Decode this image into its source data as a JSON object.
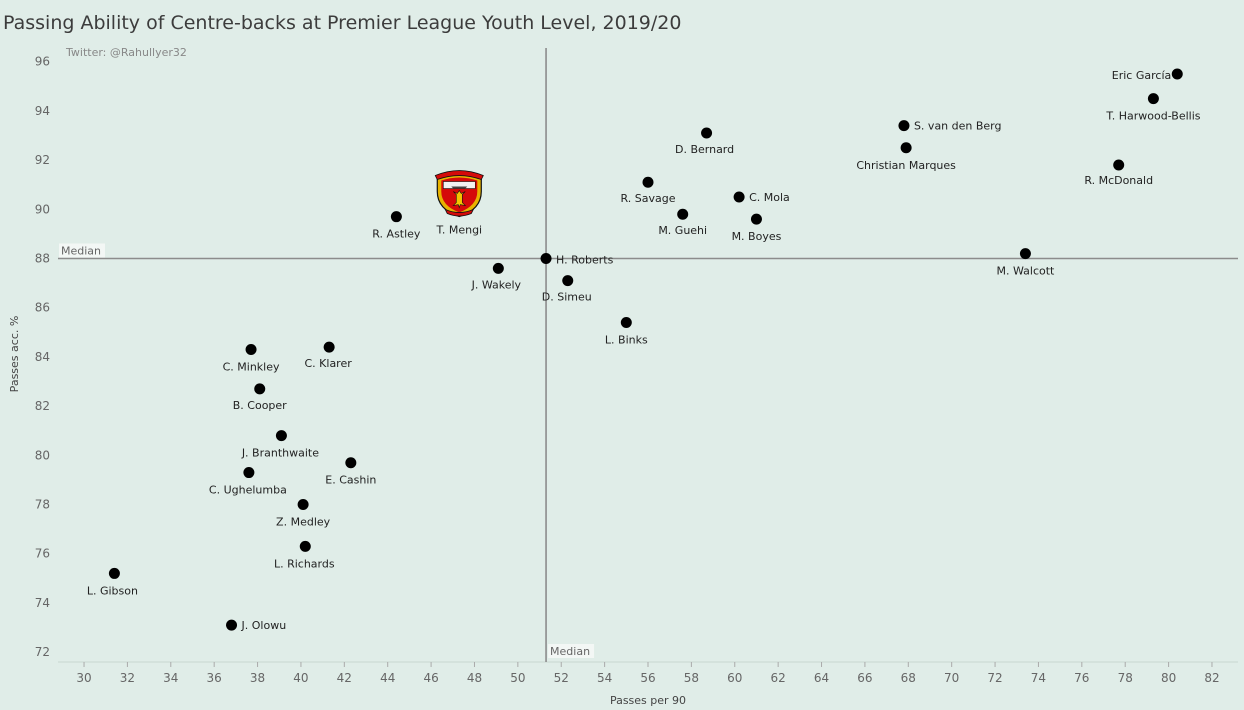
{
  "chart_data": {
    "type": "scatter",
    "title": "Passing Ability of Centre-backs at Premier League Youth Level, 2019/20",
    "credit": "Twitter: @Rahullyer32",
    "xlabel": "Passes per 90",
    "ylabel": "Passes acc. %",
    "xlim": [
      28.8,
      83.2
    ],
    "ylim": [
      71.6,
      96.8
    ],
    "xticks": [
      30,
      32,
      34,
      36,
      38,
      40,
      42,
      44,
      46,
      48,
      50,
      52,
      54,
      56,
      58,
      60,
      62,
      64,
      66,
      68,
      70,
      72,
      74,
      76,
      78,
      80,
      82
    ],
    "yticks": [
      72,
      74,
      76,
      78,
      80,
      82,
      84,
      86,
      88,
      90,
      92,
      94,
      96
    ],
    "median_x": 51.3,
    "median_y": 88.0,
    "median_label": "Median",
    "logo_player": "T. Mengi",
    "logo_text": "MANCHESTER UNITED",
    "points": [
      {
        "name": "Eric García",
        "x": 80.4,
        "y": 95.5
      },
      {
        "name": "T. Harwood-Bellis",
        "x": 79.3,
        "y": 94.5
      },
      {
        "name": "S. van den Berg",
        "x": 67.8,
        "y": 93.4
      },
      {
        "name": "Christian Marques",
        "x": 67.9,
        "y": 92.5
      },
      {
        "name": "R. McDonald",
        "x": 77.7,
        "y": 91.8
      },
      {
        "name": "D. Bernard",
        "x": 58.7,
        "y": 93.1
      },
      {
        "name": "R. Savage",
        "x": 56.0,
        "y": 91.1
      },
      {
        "name": "C. Mola",
        "x": 60.2,
        "y": 90.5
      },
      {
        "name": "M. Guehi",
        "x": 57.6,
        "y": 89.8
      },
      {
        "name": "M. Boyes",
        "x": 61.0,
        "y": 89.6
      },
      {
        "name": "R. Astley",
        "x": 44.4,
        "y": 89.7
      },
      {
        "name": "M. Walcott",
        "x": 73.4,
        "y": 88.2
      },
      {
        "name": "H. Roberts",
        "x": 51.3,
        "y": 88.0
      },
      {
        "name": "J. Wakely",
        "x": 49.1,
        "y": 87.6
      },
      {
        "name": "D. Simeu",
        "x": 52.3,
        "y": 87.1
      },
      {
        "name": "L. Binks",
        "x": 55.0,
        "y": 85.4
      },
      {
        "name": "C. Minkley",
        "x": 37.7,
        "y": 84.3
      },
      {
        "name": "C. Klarer",
        "x": 41.3,
        "y": 84.4
      },
      {
        "name": "B. Cooper",
        "x": 38.1,
        "y": 82.7
      },
      {
        "name": "J. Branthwaite",
        "x": 39.1,
        "y": 80.8
      },
      {
        "name": "E. Cashin",
        "x": 42.3,
        "y": 79.7
      },
      {
        "name": "C. Ughelumba",
        "x": 37.6,
        "y": 79.3
      },
      {
        "name": "Z. Medley",
        "x": 40.1,
        "y": 78.0
      },
      {
        "name": "L. Richards",
        "x": 40.2,
        "y": 76.3
      },
      {
        "name": "L. Gibson",
        "x": 31.4,
        "y": 75.2
      },
      {
        "name": "J. Olowu",
        "x": 36.8,
        "y": 73.1
      },
      {
        "name": "T. Mengi",
        "x": 47.3,
        "y": 90.6
      }
    ]
  }
}
